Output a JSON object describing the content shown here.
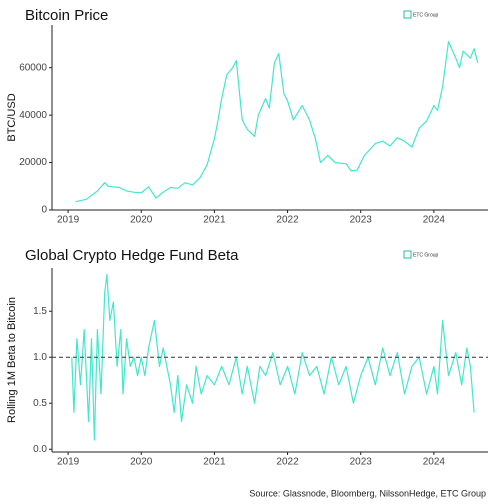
{
  "chart_data": [
    {
      "type": "line",
      "title": "Bitcoin Price",
      "ylabel": "BTC/USD",
      "logo": "ETC Group",
      "color": "#40e8cc",
      "xlim": [
        2018.78,
        2024.74
      ],
      "xticks": [
        2019,
        2020,
        2021,
        2022,
        2023,
        2024
      ],
      "ylim": [
        0,
        78000
      ],
      "yticks": [
        0,
        20000,
        40000,
        60000
      ],
      "x": [
        2019.1,
        2019.25,
        2019.4,
        2019.5,
        2019.55,
        2019.7,
        2019.8,
        2019.9,
        2020.0,
        2020.1,
        2020.2,
        2020.3,
        2020.4,
        2020.5,
        2020.6,
        2020.7,
        2020.8,
        2020.9,
        2021.0,
        2021.05,
        2021.1,
        2021.17,
        2021.25,
        2021.3,
        2021.38,
        2021.45,
        2021.55,
        2021.6,
        2021.7,
        2021.75,
        2021.82,
        2021.88,
        2021.95,
        2022.0,
        2022.08,
        2022.2,
        2022.3,
        2022.38,
        2022.45,
        2022.55,
        2022.65,
        2022.8,
        2022.87,
        2022.95,
        2023.05,
        2023.2,
        2023.3,
        2023.4,
        2023.5,
        2023.6,
        2023.7,
        2023.8,
        2023.9,
        2024.0,
        2024.05,
        2024.12,
        2024.2,
        2024.3,
        2024.35,
        2024.4,
        2024.5,
        2024.55,
        2024.6
      ],
      "values": [
        3500,
        4500,
        8000,
        11500,
        10000,
        9500,
        8000,
        7500,
        7200,
        9800,
        5000,
        7500,
        9500,
        9200,
        11500,
        10600,
        13500,
        19000,
        30000,
        38000,
        47000,
        57000,
        60000,
        63000,
        38000,
        34000,
        31000,
        40000,
        47000,
        43000,
        62000,
        66000,
        49000,
        46000,
        38000,
        44000,
        38000,
        30000,
        20000,
        23000,
        20000,
        19500,
        16500,
        16800,
        23000,
        28000,
        29000,
        27000,
        30500,
        29000,
        26500,
        34500,
        37500,
        44000,
        42000,
        52000,
        71000,
        64000,
        60000,
        67000,
        64000,
        68000,
        62000
      ]
    },
    {
      "type": "line",
      "title": "Global Crypto Hedge Fund Beta",
      "ylabel": "Rolling 1M Beta to Bitcoin",
      "logo": "ETC Group",
      "color": "#40e8cc",
      "xlim": [
        2018.78,
        2024.74
      ],
      "xticks": [
        2019,
        2020,
        2021,
        2022,
        2023,
        2024
      ],
      "ylim": [
        -0.03,
        1.97
      ],
      "yticks": [
        {
          "value": 0,
          "label": "0.0"
        },
        0.5,
        {
          "value": 1,
          "label": "1.0"
        },
        1.5
      ],
      "hline": 1,
      "x": [
        2019.05,
        2019.08,
        2019.12,
        2019.17,
        2019.22,
        2019.28,
        2019.32,
        2019.36,
        2019.4,
        2019.45,
        2019.5,
        2019.53,
        2019.57,
        2019.62,
        2019.67,
        2019.72,
        2019.75,
        2019.8,
        2019.85,
        2019.9,
        2019.95,
        2020.0,
        2020.05,
        2020.1,
        2020.18,
        2020.25,
        2020.3,
        2020.4,
        2020.45,
        2020.5,
        2020.55,
        2020.62,
        2020.7,
        2020.75,
        2020.82,
        2020.9,
        2021.0,
        2021.1,
        2021.2,
        2021.3,
        2021.38,
        2021.45,
        2021.55,
        2021.62,
        2021.7,
        2021.8,
        2021.9,
        2022.0,
        2022.1,
        2022.2,
        2022.3,
        2022.4,
        2022.5,
        2022.6,
        2022.7,
        2022.8,
        2022.9,
        2023.0,
        2023.1,
        2023.2,
        2023.3,
        2023.4,
        2023.5,
        2023.6,
        2023.7,
        2023.8,
        2023.9,
        2024.0,
        2024.05,
        2024.12,
        2024.2,
        2024.3,
        2024.38,
        2024.45,
        2024.5,
        2024.55
      ],
      "values": [
        1.0,
        0.4,
        1.2,
        0.7,
        1.3,
        0.3,
        1.2,
        0.1,
        1.3,
        0.6,
        1.7,
        1.9,
        1.4,
        1.6,
        0.9,
        1.3,
        0.6,
        1.2,
        0.9,
        1.0,
        0.8,
        1.0,
        0.8,
        1.1,
        1.4,
        0.9,
        1.1,
        0.7,
        0.4,
        0.8,
        0.3,
        0.7,
        0.5,
        0.9,
        0.6,
        0.8,
        0.7,
        0.9,
        0.7,
        1.0,
        0.6,
        0.9,
        0.5,
        0.9,
        0.8,
        1.05,
        0.7,
        0.9,
        0.6,
        1.05,
        0.8,
        0.9,
        0.6,
        1.0,
        0.7,
        0.9,
        0.5,
        0.8,
        1.0,
        0.7,
        1.1,
        0.8,
        1.05,
        0.6,
        0.9,
        1.0,
        0.6,
        0.9,
        0.6,
        1.4,
        0.8,
        1.05,
        0.7,
        1.1,
        0.9,
        0.4
      ]
    }
  ],
  "source": "Source: Glassnode, Bloomberg, NilssonHedge, ETC Group"
}
